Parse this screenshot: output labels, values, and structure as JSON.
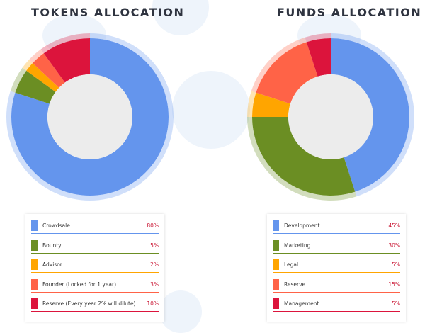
{
  "chart_data": [
    {
      "type": "pie",
      "title": "TOKENS ALLOCATION",
      "ring_color": "#c7d9f2",
      "categories": [
        "Crowdsale",
        "Bounty",
        "Advisor",
        "Founder (Locked for 1 year)",
        "Reserve (Every year 2% will dilute)"
      ],
      "values": [
        80,
        5,
        2,
        3,
        10
      ],
      "labels": [
        "80%",
        "5%",
        "2%",
        "3%",
        "10%"
      ],
      "colors": [
        "#6495ed",
        "#6b8e23",
        "#ffa500",
        "#ff6347",
        "#dc143c"
      ]
    },
    {
      "type": "pie",
      "title": "FUNDS ALLOCATION",
      "ring_color": "#c7d9f2",
      "categories": [
        "Development",
        "Marketing",
        "Legal",
        "Reserve",
        "Management"
      ],
      "values": [
        45,
        30,
        5,
        15,
        5
      ],
      "labels": [
        "45%",
        "30%",
        "5%",
        "15%",
        "5%"
      ],
      "colors": [
        "#6495ed",
        "#6b8e23",
        "#ffa500",
        "#ff6347",
        "#dc143c"
      ]
    }
  ]
}
